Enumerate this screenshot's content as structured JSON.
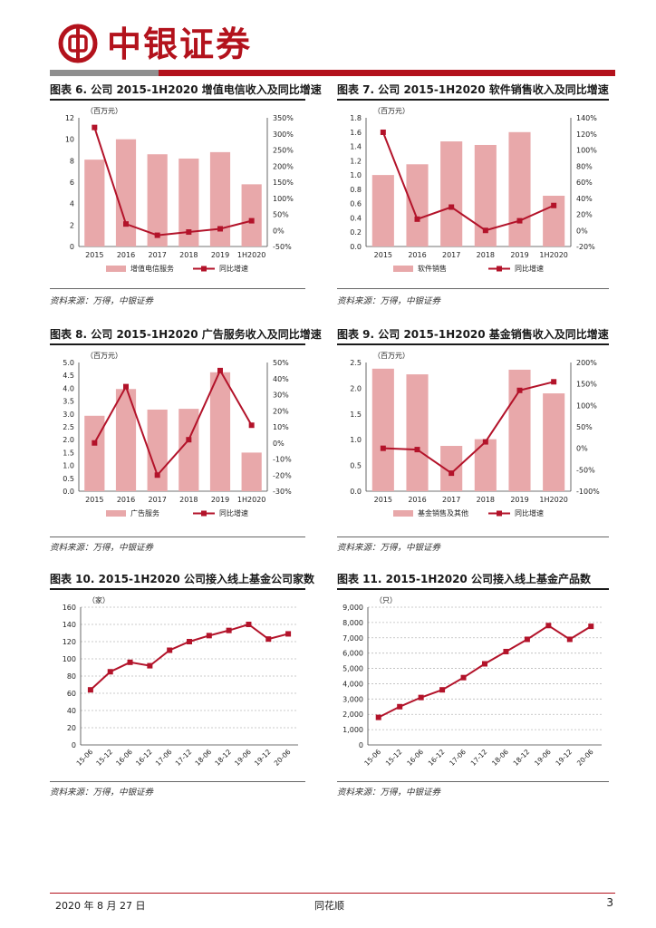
{
  "header": {
    "brand": "中银证券",
    "logo_color": "#b3121c"
  },
  "colors": {
    "bar": "#e8a8aa",
    "line": "#b3132a"
  },
  "panels": [
    {
      "title": "图表 6. 公司 2015-1H2020 增值电信收入及同比增速",
      "source": "资料来源：万得，中银证券"
    },
    {
      "title": "图表 7. 公司 2015-1H2020 软件销售收入及同比增速",
      "source": "资料来源：万得，中银证券"
    },
    {
      "title": "图表 8. 公司 2015-1H2020 广告服务收入及同比增速",
      "source": "资料来源：万得，中银证券"
    },
    {
      "title": "图表 9. 公司 2015-1H2020 基金销售收入及同比增速",
      "source": "资料来源：万得，中银证券"
    },
    {
      "title": "图表 10. 2015-1H2020 公司接入线上基金公司家数",
      "source": "资料来源：万得，中银证券"
    },
    {
      "title": "图表 11. 2015-1H2020 公司接入线上基金产品数",
      "source": "资料来源：万得，中银证券"
    }
  ],
  "chart_data": [
    {
      "type": "bar+line",
      "unit_label": "（百万元）",
      "categories": [
        "2015",
        "2016",
        "2017",
        "2018",
        "2019",
        "1H2020"
      ],
      "series": [
        {
          "name": "增值电信服务",
          "type": "bar",
          "axis": "left",
          "values": [
            8.1,
            10.0,
            8.6,
            8.2,
            8.8,
            5.8
          ]
        },
        {
          "name": "同比增速",
          "type": "line",
          "axis": "right",
          "values": [
            320,
            20,
            -15,
            -5,
            5,
            30
          ]
        }
      ],
      "ylim": [
        0,
        12
      ],
      "yticks": [
        0,
        2,
        4,
        6,
        8,
        10,
        12
      ],
      "y2lim": [
        -50,
        350
      ],
      "y2ticks": [
        "-50%",
        "0%",
        "50%",
        "100%",
        "150%",
        "200%",
        "250%",
        "300%",
        "350%"
      ]
    },
    {
      "type": "bar+line",
      "unit_label": "（百万元）",
      "categories": [
        "2015",
        "2016",
        "2017",
        "2018",
        "2019",
        "1H2020"
      ],
      "series": [
        {
          "name": "软件销售",
          "type": "bar",
          "axis": "left",
          "values": [
            1.0,
            1.15,
            1.47,
            1.42,
            1.6,
            0.71
          ]
        },
        {
          "name": "同比增速",
          "type": "line",
          "axis": "right",
          "values": [
            122,
            14,
            29,
            0,
            12,
            31
          ]
        }
      ],
      "ylim": [
        0,
        1.8
      ],
      "yticks": [
        "0.0",
        "0.2",
        "0.4",
        "0.6",
        "0.8",
        "1.0",
        "1.2",
        "1.4",
        "1.6",
        "1.8"
      ],
      "y2lim": [
        -20,
        140
      ],
      "y2ticks": [
        "-20%",
        "0%",
        "20%",
        "40%",
        "60%",
        "80%",
        "100%",
        "120%",
        "140%"
      ]
    },
    {
      "type": "bar+line",
      "unit_label": "（百万元）",
      "categories": [
        "2015",
        "2016",
        "2017",
        "2018",
        "2019",
        "1H2020"
      ],
      "series": [
        {
          "name": "广告服务",
          "type": "bar",
          "axis": "left",
          "values": [
            2.93,
            3.97,
            3.17,
            3.2,
            4.62,
            1.5
          ]
        },
        {
          "name": "同比增速",
          "type": "line",
          "axis": "right",
          "values": [
            0,
            35,
            -20,
            2,
            45,
            11
          ]
        }
      ],
      "ylim": [
        0,
        5
      ],
      "yticks": [
        "0.0",
        "0.5",
        "1.0",
        "1.5",
        "2.0",
        "2.5",
        "3.0",
        "3.5",
        "4.0",
        "4.5",
        "5.0"
      ],
      "y2lim": [
        -30,
        50
      ],
      "y2ticks": [
        "-30%",
        "-20%",
        "-10%",
        "0%",
        "10%",
        "20%",
        "30%",
        "40%",
        "50%"
      ]
    },
    {
      "type": "bar+line",
      "unit_label": "（百万元）",
      "categories": [
        "2015",
        "2016",
        "2017",
        "2018",
        "2019",
        "1H2020"
      ],
      "series": [
        {
          "name": "基金销售及其他",
          "type": "bar",
          "axis": "left",
          "values": [
            2.38,
            2.27,
            0.88,
            1.01,
            2.36,
            1.9
          ]
        },
        {
          "name": "同比增速",
          "type": "line",
          "axis": "right",
          "values": [
            0,
            -3,
            -58,
            15,
            135,
            155
          ]
        }
      ],
      "ylim": [
        0,
        2.5
      ],
      "yticks": [
        "0.0",
        "0.5",
        "1.0",
        "1.5",
        "2.0",
        "2.5"
      ],
      "y2lim": [
        -100,
        200
      ],
      "y2ticks": [
        "-100%",
        "-50%",
        "0%",
        "50%",
        "100%",
        "150%",
        "200%"
      ]
    },
    {
      "type": "line",
      "unit_label": "（家）",
      "categories": [
        "15-06",
        "15-12",
        "16-06",
        "16-12",
        "17-06",
        "17-12",
        "18-06",
        "18-12",
        "19-06",
        "19-12",
        "20-06"
      ],
      "series": [
        {
          "name": "接入线上基金公司家数",
          "values": [
            64,
            85,
            96,
            92,
            110,
            120,
            127,
            133,
            140,
            123,
            129
          ]
        }
      ],
      "ylim": [
        0,
        160
      ],
      "yticks": [
        "0",
        "20",
        "40",
        "60",
        "80",
        "100",
        "120",
        "140",
        "160"
      ]
    },
    {
      "type": "line",
      "unit_label": "（只）",
      "categories": [
        "15-06",
        "15-12",
        "16-06",
        "16-12",
        "17-06",
        "17-12",
        "18-06",
        "18-12",
        "19-06",
        "19-12",
        "20-06"
      ],
      "series": [
        {
          "name": "接入线上基金产品数",
          "values": [
            1800,
            2500,
            3100,
            3600,
            4400,
            5300,
            6100,
            6900,
            7800,
            6900,
            7750
          ]
        }
      ],
      "ylim": [
        0,
        9000
      ],
      "yticks": [
        "0",
        "1,000",
        "2,000",
        "3,000",
        "4,000",
        "5,000",
        "6,000",
        "7,000",
        "8,000",
        "9,000"
      ]
    }
  ],
  "footer": {
    "date": "2020 年 8 月 27 日",
    "company": "同花顺",
    "page": "3"
  }
}
